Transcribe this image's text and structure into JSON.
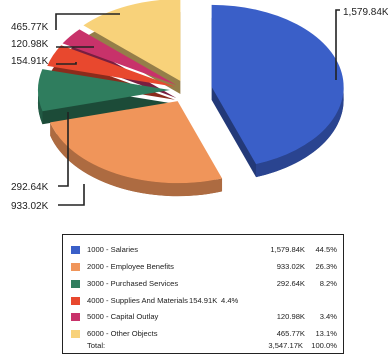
{
  "chart_data": {
    "type": "pie",
    "title": "",
    "slices": [
      {
        "category": "1000 - Salaries",
        "value_label": "1,579.84K",
        "value": 1579.84,
        "percent": "44.5%",
        "color": "#3a5fc8"
      },
      {
        "category": "2000 - Employee Benefits",
        "value_label": "933.02K",
        "value": 933.02,
        "percent": "26.3%",
        "color": "#f0955a"
      },
      {
        "category": "3000 - Purchased Services",
        "value_label": "292.64K",
        "value": 292.64,
        "percent": "8.2%",
        "color": "#2f7d5e"
      },
      {
        "category": "4000 - Supplies And Materials",
        "value_label": "154.91K",
        "value": 154.91,
        "percent": "4.4%",
        "color": "#e8482e"
      },
      {
        "category": "5000 - Capital Outlay",
        "value_label": "120.98K",
        "value": 120.98,
        "percent": "3.4%",
        "color": "#c8326a"
      },
      {
        "category": "6000 - Other Objects",
        "value_label": "465.77K",
        "value": 465.77,
        "percent": "13.1%",
        "color": "#f8d27a"
      }
    ],
    "total": {
      "label": "Total:",
      "value_label": "3,547.17K",
      "percent": "100.0%"
    },
    "legend_placement": "bottom",
    "exploded": true,
    "three_d": true
  }
}
